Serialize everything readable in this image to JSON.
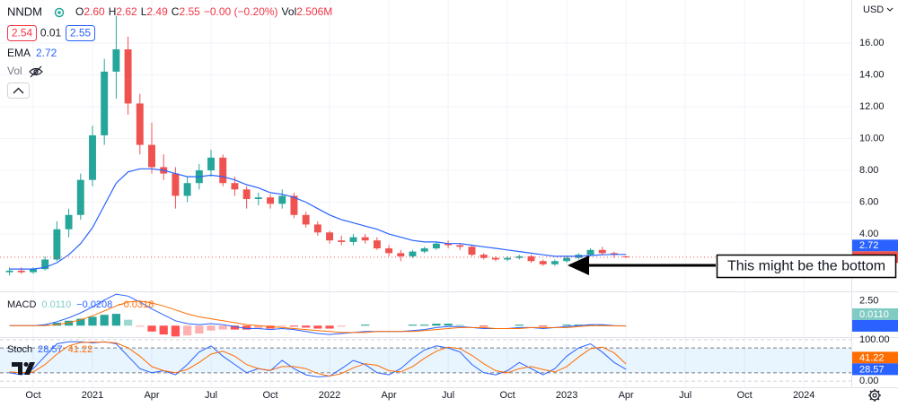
{
  "header": {
    "symbol": "NNDM",
    "ohlc": [
      [
        "O",
        "2.60"
      ],
      [
        "H",
        "2.62"
      ],
      [
        "L",
        "2.49"
      ],
      [
        "C",
        "2.55"
      ]
    ],
    "change": "−0.00 (−0.20%)",
    "volume": [
      "Vol",
      "2.506M"
    ],
    "bid": "2.54",
    "spread": "0.01",
    "ask": "2.55",
    "ema": [
      "EMA",
      "2.72"
    ],
    "vol_label": "Vol",
    "currency": "USD",
    "annotation": "This might be the bottom"
  },
  "chart_data": [
    {
      "type": "candlestick",
      "grid": true,
      "up_color": "#26a69a",
      "down_color": "#ef5350",
      "xlim": [
        2020.61,
        2024.2
      ],
      "xticks": [
        {
          "value": 2020.75,
          "label": "Oct"
        },
        2021,
        {
          "value": 2021.25,
          "label": "Apr"
        },
        {
          "value": 2021.5,
          "label": "Jul"
        },
        {
          "value": 2021.75,
          "label": "Oct"
        },
        2022,
        {
          "value": 2022.25,
          "label": "Apr"
        },
        {
          "value": 2022.5,
          "label": "Jul"
        },
        {
          "value": 2022.75,
          "label": "Oct"
        },
        2023,
        {
          "value": 2023.25,
          "label": "Apr"
        },
        {
          "value": 2023.5,
          "label": "Jul"
        },
        {
          "value": 2023.75,
          "label": "Oct"
        },
        2024
      ],
      "ylim": [
        0.4,
        18.7
      ],
      "yticks": [
        {
          "value": 4,
          "label": "4.00"
        },
        {
          "value": 6,
          "label": "6.00"
        },
        {
          "value": 8,
          "label": "8.00"
        },
        {
          "value": 10,
          "label": "10.00"
        },
        {
          "value": 12,
          "label": "12.00"
        },
        {
          "value": 14,
          "label": "14.00"
        },
        {
          "value": 16,
          "label": "16.00"
        }
      ],
      "x": [
        2020.65,
        2020.7,
        2020.75,
        2020.8,
        2020.85,
        2020.9,
        2020.95,
        2021,
        2021.05,
        2021.1,
        2021.15,
        2021.2,
        2021.25,
        2021.3,
        2021.35,
        2021.4,
        2021.45,
        2021.5,
        2021.55,
        2021.6,
        2021.65,
        2021.7,
        2021.75,
        2021.8,
        2021.85,
        2021.9,
        2021.95,
        2022,
        2022.05,
        2022.1,
        2022.15,
        2022.2,
        2022.25,
        2022.3,
        2022.35,
        2022.4,
        2022.45,
        2022.5,
        2022.55,
        2022.6,
        2022.65,
        2022.7,
        2022.75,
        2022.8,
        2022.85,
        2022.9,
        2022.95,
        2023,
        2023.05,
        2023.1,
        2023.15,
        2023.2,
        2023.25
      ],
      "open": [
        1.6,
        1.7,
        1.6,
        1.8,
        2.4,
        4.3,
        5.2,
        7.4,
        10.2,
        14.2,
        15.6,
        12.2,
        9.6,
        8.2,
        7.8,
        6.4,
        7.2,
        8.0,
        8.8,
        7.2,
        6.8,
        6.2,
        6.3,
        5.9,
        6.4,
        5.2,
        4.6,
        4.1,
        3.6,
        3.5,
        3.8,
        3.6,
        3.1,
        2.8,
        2.6,
        2.9,
        3.1,
        3.4,
        3.3,
        3.2,
        2.7,
        2.5,
        2.4,
        2.5,
        2.6,
        2.3,
        2.1,
        2.3,
        2.5,
        2.7,
        3.0,
        2.8,
        2.6
      ],
      "high": [
        1.9,
        1.9,
        1.9,
        2.6,
        4.8,
        5.6,
        7.8,
        10.8,
        15.0,
        17.7,
        16.4,
        12.8,
        11.0,
        9.0,
        8.2,
        7.6,
        8.4,
        9.3,
        9.0,
        7.6,
        7.0,
        6.6,
        6.5,
        6.8,
        6.6,
        5.4,
        4.8,
        4.2,
        3.9,
        4.0,
        4.0,
        3.8,
        3.3,
        3.0,
        3.0,
        3.2,
        3.5,
        3.6,
        3.4,
        3.3,
        2.8,
        2.6,
        2.6,
        2.7,
        2.7,
        2.4,
        2.4,
        2.6,
        2.8,
        3.1,
        3.2,
        2.9,
        2.62
      ],
      "low": [
        1.4,
        1.5,
        1.5,
        1.7,
        2.3,
        3.8,
        4.9,
        7.0,
        9.6,
        12.5,
        11.5,
        9.0,
        7.8,
        7.4,
        5.6,
        6.0,
        6.8,
        7.6,
        7.0,
        6.4,
        5.6,
        5.8,
        5.6,
        5.6,
        5.0,
        4.4,
        3.9,
        3.4,
        3.3,
        3.3,
        3.4,
        3.0,
        2.6,
        2.3,
        2.5,
        2.8,
        3.0,
        3.1,
        3.0,
        2.6,
        2.4,
        2.3,
        2.3,
        2.4,
        2.2,
        2.0,
        2.0,
        2.2,
        2.4,
        2.6,
        2.7,
        2.5,
        2.49
      ],
      "close": [
        1.7,
        1.6,
        1.8,
        2.4,
        4.3,
        5.2,
        7.4,
        10.2,
        14.2,
        15.6,
        12.2,
        9.6,
        8.2,
        7.8,
        6.4,
        7.2,
        8.0,
        8.8,
        7.2,
        6.8,
        6.2,
        6.3,
        5.9,
        6.4,
        5.2,
        4.6,
        4.1,
        3.6,
        3.5,
        3.8,
        3.6,
        3.1,
        2.8,
        2.6,
        2.9,
        3.1,
        3.4,
        3.3,
        3.2,
        2.7,
        2.5,
        2.4,
        2.5,
        2.6,
        2.3,
        2.1,
        2.3,
        2.5,
        2.7,
        3.0,
        2.8,
        2.7,
        2.55
      ],
      "series": [
        {
          "name": "EMA",
          "color": "#2962ff",
          "values": [
            1.8,
            1.8,
            1.8,
            1.9,
            2.2,
            2.7,
            3.4,
            4.4,
            5.8,
            7.2,
            7.9,
            8.1,
            8.1,
            8.0,
            7.8,
            7.6,
            7.6,
            7.7,
            7.6,
            7.4,
            7.1,
            6.9,
            6.6,
            6.5,
            6.3,
            6.0,
            5.6,
            5.2,
            4.9,
            4.7,
            4.5,
            4.3,
            4.0,
            3.8,
            3.6,
            3.5,
            3.5,
            3.4,
            3.4,
            3.3,
            3.2,
            3.1,
            3.0,
            2.9,
            2.8,
            2.7,
            2.6,
            2.6,
            2.6,
            2.65,
            2.7,
            2.72,
            2.72
          ]
        }
      ]
    },
    {
      "type": "macd",
      "title": "MACD",
      "legend_values": [
        "0.0110",
        "−0.0208",
        "−0.0318"
      ],
      "legend_colors": [
        "#80cbc4",
        "#2962ff",
        "#ff6d00"
      ],
      "ylim": [
        -1.07,
        3.39
      ],
      "yticks": [
        {
          "value": 2.5,
          "label": "2.50"
        }
      ],
      "histogram": [
        0,
        0,
        0,
        0.1,
        0.3,
        0.5,
        0.7,
        0.9,
        1.1,
        1.2,
        0.6,
        -0.1,
        -0.6,
        -0.9,
        -1.1,
        -1.0,
        -0.8,
        -0.5,
        -0.4,
        -0.4,
        -0.4,
        -0.3,
        -0.3,
        -0.1,
        -0.1,
        -0.2,
        -0.3,
        -0.3,
        -0.1,
        0,
        0.1,
        0,
        0,
        0,
        0.1,
        0.1,
        0.2,
        0.2,
        0.1,
        0,
        -0.1,
        0,
        0,
        0.1,
        0,
        -0.1,
        0,
        0.1,
        0.1,
        0.1,
        0.1,
        0.02,
        0.011
      ],
      "histogram_colors": [
        "#26a69a",
        "#ff5252"
      ],
      "series": [
        {
          "color": "#2962ff",
          "values": [
            0,
            0,
            0,
            0.1,
            0.4,
            0.8,
            1.3,
            1.9,
            2.6,
            3.2,
            3.0,
            2.4,
            1.7,
            1.1,
            0.5,
            0.2,
            0.1,
            0.2,
            0.1,
            -0.1,
            -0.3,
            -0.3,
            -0.4,
            -0.3,
            -0.4,
            -0.6,
            -0.8,
            -0.9,
            -0.8,
            -0.7,
            -0.6,
            -0.6,
            -0.6,
            -0.6,
            -0.5,
            -0.4,
            -0.2,
            -0.1,
            -0.1,
            -0.2,
            -0.3,
            -0.3,
            -0.3,
            -0.2,
            -0.2,
            -0.3,
            -0.2,
            -0.1,
            0,
            0.1,
            0.1,
            0,
            -0.0208
          ]
        },
        {
          "color": "#ff6d00",
          "values": [
            0,
            0,
            0,
            0,
            0.1,
            0.3,
            0.6,
            1.0,
            1.5,
            2.0,
            2.4,
            2.5,
            2.3,
            2.0,
            1.6,
            1.2,
            0.9,
            0.7,
            0.5,
            0.3,
            0.1,
            0,
            -0.1,
            -0.2,
            -0.3,
            -0.4,
            -0.5,
            -0.6,
            -0.7,
            -0.7,
            -0.7,
            -0.6,
            -0.6,
            -0.6,
            -0.6,
            -0.5,
            -0.4,
            -0.3,
            -0.2,
            -0.2,
            -0.2,
            -0.3,
            -0.3,
            -0.3,
            -0.2,
            -0.2,
            -0.2,
            -0.2,
            -0.1,
            0,
            0,
            -0.02,
            -0.0318
          ]
        }
      ]
    },
    {
      "type": "stoch",
      "title": "Stoch",
      "legend_values": [
        "28.57",
        "41.22"
      ],
      "legend_colors": [
        "#2962ff",
        "#ff6d00"
      ],
      "ylim": [
        -15,
        104
      ],
      "yticks": [
        {
          "value": 100,
          "label": "100.00"
        },
        {
          "value": 0,
          "label": "0.00"
        }
      ],
      "bands": [
        20,
        80
      ],
      "series": [
        {
          "color": "#2962ff",
          "values": [
            20,
            15,
            30,
            60,
            90,
            95,
            95,
            92,
            95,
            90,
            60,
            30,
            20,
            25,
            15,
            40,
            70,
            85,
            60,
            40,
            20,
            30,
            25,
            50,
            30,
            15,
            10,
            12,
            30,
            50,
            40,
            20,
            15,
            30,
            55,
            75,
            85,
            80,
            70,
            40,
            20,
            15,
            25,
            45,
            30,
            15,
            30,
            60,
            80,
            90,
            70,
            45,
            28.57
          ]
        },
        {
          "color": "#ff6d00",
          "values": [
            22,
            20,
            22,
            40,
            65,
            85,
            93,
            94,
            94,
            92,
            80,
            60,
            35,
            25,
            20,
            28,
            45,
            65,
            72,
            60,
            40,
            30,
            26,
            35,
            35,
            30,
            18,
            12,
            18,
            32,
            42,
            38,
            25,
            22,
            35,
            55,
            72,
            82,
            78,
            62,
            42,
            25,
            20,
            30,
            35,
            28,
            22,
            35,
            58,
            78,
            82,
            68,
            41.22
          ]
        }
      ]
    }
  ]
}
